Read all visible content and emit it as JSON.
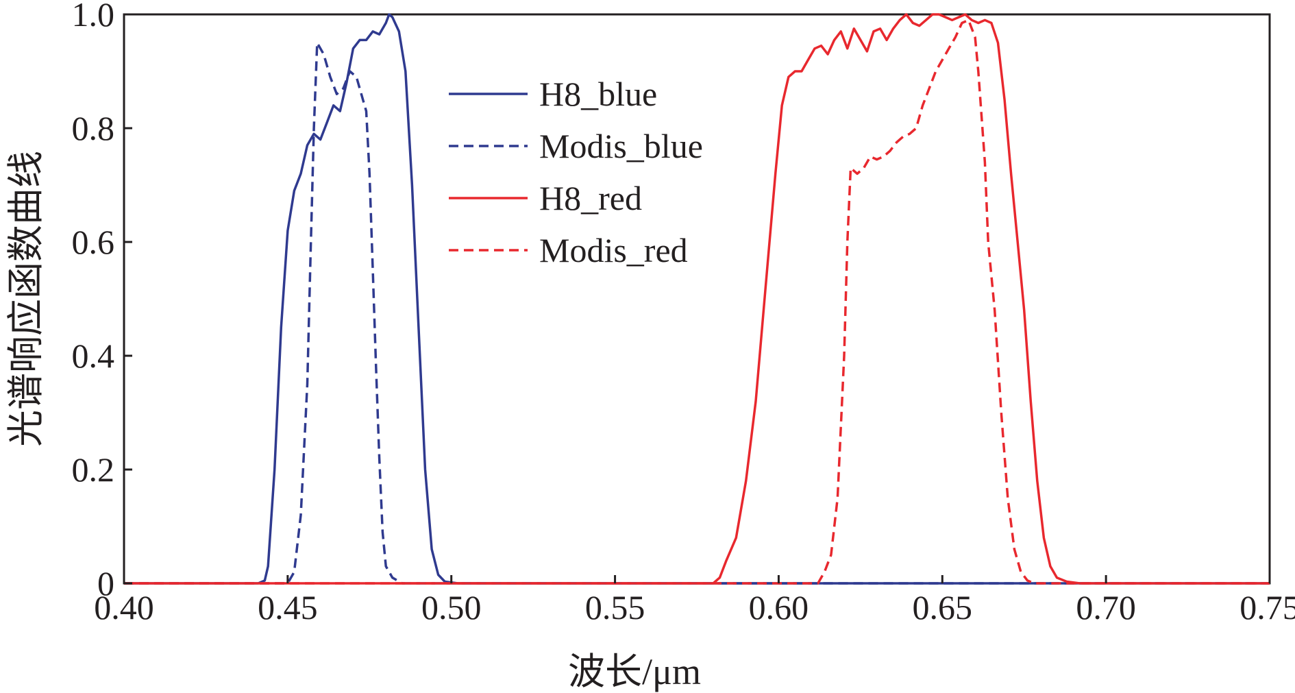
{
  "chart_data": {
    "type": "line",
    "title": "",
    "xlabel": "波长/μm",
    "ylabel": "光谱响应函数曲线",
    "xlim": [
      0.4,
      0.75
    ],
    "ylim": [
      0,
      1.0
    ],
    "grid": false,
    "legend_position": "top-center",
    "x_ticks": [
      "0.40",
      "0.45",
      "0.50",
      "0.55",
      "0.60",
      "0.65",
      "0.70",
      "0.75"
    ],
    "y_ticks": [
      "0",
      "0.2",
      "0.4",
      "0.6",
      "0.8",
      "1.0"
    ],
    "series": [
      {
        "name": "H8_blue",
        "color": "#2f3a8f",
        "dash": "solid",
        "points": [
          [
            0.4,
            0.0
          ],
          [
            0.441,
            0.0
          ],
          [
            0.443,
            0.005
          ],
          [
            0.444,
            0.03
          ],
          [
            0.446,
            0.2
          ],
          [
            0.448,
            0.45
          ],
          [
            0.45,
            0.62
          ],
          [
            0.452,
            0.69
          ],
          [
            0.454,
            0.72
          ],
          [
            0.456,
            0.77
          ],
          [
            0.458,
            0.79
          ],
          [
            0.46,
            0.78
          ],
          [
            0.462,
            0.81
          ],
          [
            0.464,
            0.84
          ],
          [
            0.466,
            0.83
          ],
          [
            0.468,
            0.88
          ],
          [
            0.47,
            0.94
          ],
          [
            0.472,
            0.955
          ],
          [
            0.474,
            0.955
          ],
          [
            0.476,
            0.97
          ],
          [
            0.478,
            0.965
          ],
          [
            0.48,
            0.985
          ],
          [
            0.481,
            1.0
          ],
          [
            0.482,
            0.995
          ],
          [
            0.484,
            0.97
          ],
          [
            0.486,
            0.9
          ],
          [
            0.488,
            0.7
          ],
          [
            0.49,
            0.45
          ],
          [
            0.492,
            0.2
          ],
          [
            0.494,
            0.06
          ],
          [
            0.496,
            0.015
          ],
          [
            0.498,
            0.003
          ],
          [
            0.502,
            0.0
          ],
          [
            0.75,
            0.0
          ]
        ]
      },
      {
        "name": "Modis_blue",
        "color": "#2f3a8f",
        "dash": "dashed",
        "points": [
          [
            0.4,
            0.0
          ],
          [
            0.45,
            0.0
          ],
          [
            0.452,
            0.02
          ],
          [
            0.454,
            0.12
          ],
          [
            0.456,
            0.35
          ],
          [
            0.457,
            0.58
          ],
          [
            0.458,
            0.8
          ],
          [
            0.459,
            0.95
          ],
          [
            0.461,
            0.93
          ],
          [
            0.463,
            0.89
          ],
          [
            0.465,
            0.86
          ],
          [
            0.467,
            0.87
          ],
          [
            0.469,
            0.9
          ],
          [
            0.471,
            0.89
          ],
          [
            0.473,
            0.85
          ],
          [
            0.474,
            0.83
          ],
          [
            0.475,
            0.72
          ],
          [
            0.476,
            0.55
          ],
          [
            0.477,
            0.38
          ],
          [
            0.478,
            0.22
          ],
          [
            0.479,
            0.09
          ],
          [
            0.48,
            0.03
          ],
          [
            0.482,
            0.01
          ],
          [
            0.485,
            0.0
          ],
          [
            0.75,
            0.0
          ]
        ]
      },
      {
        "name": "H8_red",
        "color": "#e8282e",
        "dash": "solid",
        "points": [
          [
            0.4,
            0.0
          ],
          [
            0.58,
            0.0
          ],
          [
            0.582,
            0.01
          ],
          [
            0.584,
            0.04
          ],
          [
            0.587,
            0.08
          ],
          [
            0.59,
            0.18
          ],
          [
            0.593,
            0.32
          ],
          [
            0.596,
            0.52
          ],
          [
            0.599,
            0.72
          ],
          [
            0.601,
            0.84
          ],
          [
            0.603,
            0.89
          ],
          [
            0.605,
            0.9
          ],
          [
            0.607,
            0.9
          ],
          [
            0.609,
            0.92
          ],
          [
            0.611,
            0.94
          ],
          [
            0.613,
            0.945
          ],
          [
            0.615,
            0.93
          ],
          [
            0.617,
            0.955
          ],
          [
            0.619,
            0.97
          ],
          [
            0.621,
            0.94
          ],
          [
            0.623,
            0.975
          ],
          [
            0.625,
            0.955
          ],
          [
            0.627,
            0.935
          ],
          [
            0.629,
            0.97
          ],
          [
            0.631,
            0.975
          ],
          [
            0.633,
            0.955
          ],
          [
            0.635,
            0.975
          ],
          [
            0.637,
            0.99
          ],
          [
            0.639,
            1.0
          ],
          [
            0.641,
            0.985
          ],
          [
            0.643,
            0.98
          ],
          [
            0.645,
            0.99
          ],
          [
            0.647,
            1.0
          ],
          [
            0.649,
            1.0
          ],
          [
            0.651,
            0.995
          ],
          [
            0.653,
            0.99
          ],
          [
            0.655,
            0.995
          ],
          [
            0.657,
            1.0
          ],
          [
            0.659,
            0.99
          ],
          [
            0.661,
            0.985
          ],
          [
            0.663,
            0.99
          ],
          [
            0.665,
            0.985
          ],
          [
            0.667,
            0.95
          ],
          [
            0.669,
            0.85
          ],
          [
            0.671,
            0.72
          ],
          [
            0.673,
            0.6
          ],
          [
            0.675,
            0.48
          ],
          [
            0.677,
            0.32
          ],
          [
            0.679,
            0.18
          ],
          [
            0.681,
            0.08
          ],
          [
            0.683,
            0.03
          ],
          [
            0.685,
            0.01
          ],
          [
            0.688,
            0.003
          ],
          [
            0.692,
            0.0
          ],
          [
            0.75,
            0.0
          ]
        ]
      },
      {
        "name": "Modis_red",
        "color": "#e8282e",
        "dash": "dashed",
        "points": [
          [
            0.4,
            0.0
          ],
          [
            0.612,
            0.0
          ],
          [
            0.614,
            0.02
          ],
          [
            0.616,
            0.05
          ],
          [
            0.618,
            0.15
          ],
          [
            0.62,
            0.4
          ],
          [
            0.621,
            0.6
          ],
          [
            0.622,
            0.73
          ],
          [
            0.624,
            0.72
          ],
          [
            0.626,
            0.73
          ],
          [
            0.628,
            0.75
          ],
          [
            0.63,
            0.745
          ],
          [
            0.632,
            0.75
          ],
          [
            0.634,
            0.76
          ],
          [
            0.636,
            0.775
          ],
          [
            0.638,
            0.785
          ],
          [
            0.64,
            0.79
          ],
          [
            0.642,
            0.8
          ],
          [
            0.644,
            0.84
          ],
          [
            0.646,
            0.87
          ],
          [
            0.648,
            0.9
          ],
          [
            0.65,
            0.92
          ],
          [
            0.652,
            0.94
          ],
          [
            0.654,
            0.96
          ],
          [
            0.656,
            0.985
          ],
          [
            0.658,
            0.99
          ],
          [
            0.66,
            0.96
          ],
          [
            0.661,
            0.9
          ],
          [
            0.662,
            0.82
          ],
          [
            0.663,
            0.74
          ],
          [
            0.664,
            0.6
          ],
          [
            0.666,
            0.48
          ],
          [
            0.668,
            0.3
          ],
          [
            0.67,
            0.15
          ],
          [
            0.672,
            0.06
          ],
          [
            0.674,
            0.02
          ],
          [
            0.676,
            0.005
          ],
          [
            0.678,
            0.0
          ],
          [
            0.75,
            0.0
          ]
        ]
      }
    ]
  }
}
